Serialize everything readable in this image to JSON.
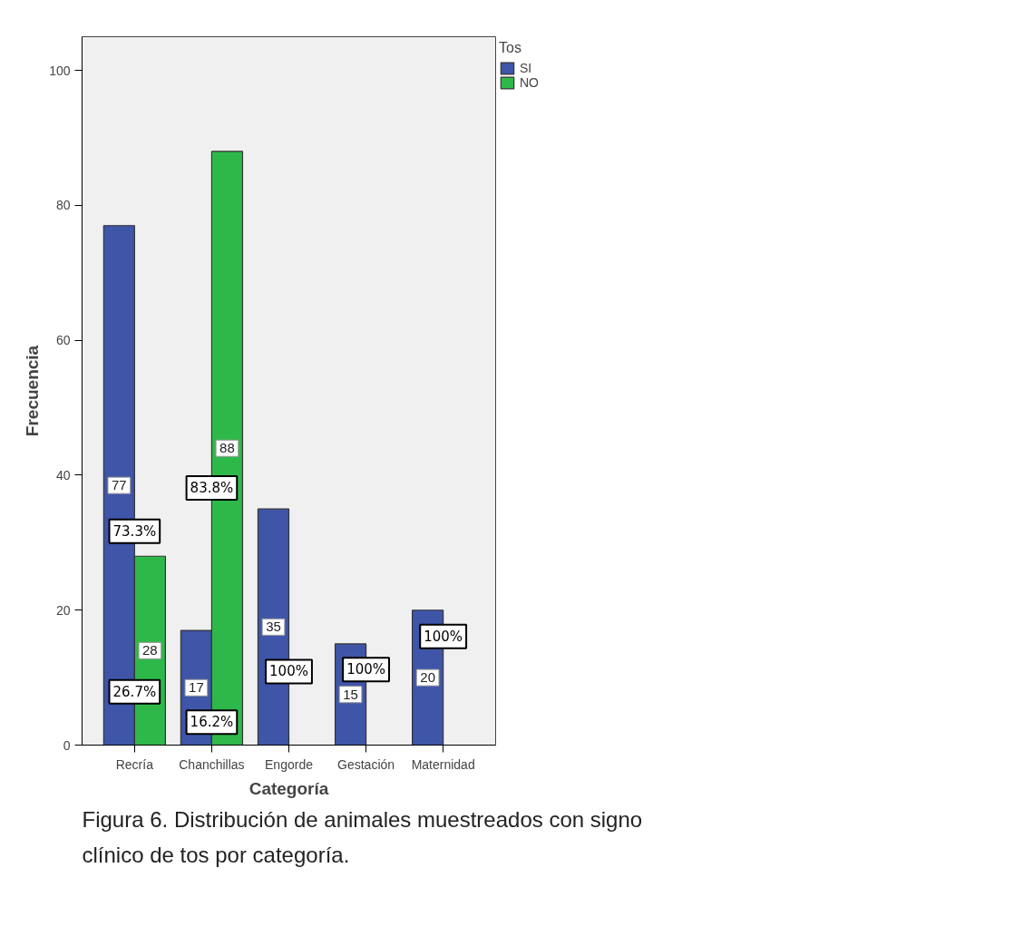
{
  "chart_data": {
    "type": "bar",
    "xlabel": "Categoría",
    "ylabel": "Frecuencia",
    "legend_title": "Tos",
    "legend": "right",
    "grid": false,
    "data_labels": true,
    "categories": [
      "Recría",
      "Chanchillas",
      "Engorde",
      "Gestación",
      "Maternidad"
    ],
    "ylim": [
      0,
      105
    ],
    "yticks": [
      0,
      20,
      40,
      60,
      80,
      100
    ],
    "series": [
      {
        "name": "SI",
        "color": "#3f55a8",
        "values": [
          77,
          17,
          35,
          15,
          20
        ]
      },
      {
        "name": "NO",
        "color": "#2fb84a",
        "values": [
          28,
          88,
          null,
          null,
          null
        ]
      }
    ],
    "annotations": [
      {
        "text": "73.3%",
        "x": "Recría",
        "y": 31.7
      },
      {
        "text": "26.7%",
        "x": "Recría",
        "y": 7.9
      },
      {
        "text": "16.2%",
        "x": "Chanchillas",
        "y": 3.4
      },
      {
        "text": "83.8%",
        "x": "Chanchillas",
        "y": 38.1
      },
      {
        "text": "100%",
        "x": "Engorde",
        "y": 10.9
      },
      {
        "text": "100%",
        "x": "Gestación",
        "y": 11.2
      },
      {
        "text": "100%",
        "x": "Maternidad",
        "y": 16.1
      },
      "Figura 6. Distribución de animales muestreados con signo clínico de tos por categoría."
    ]
  }
}
